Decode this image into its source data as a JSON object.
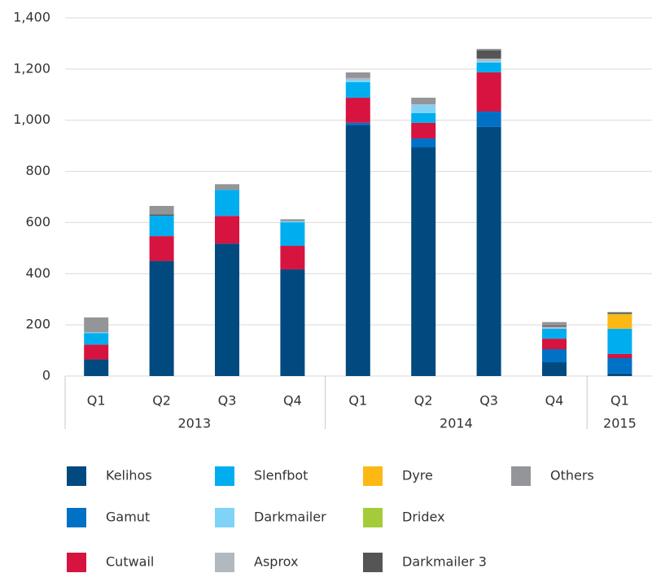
{
  "chart_data": {
    "type": "stacked_bar",
    "groups": [
      {
        "name": "2013",
        "categories": [
          "Q1",
          "Q2",
          "Q3",
          "Q4"
        ]
      },
      {
        "name": "2014",
        "categories": [
          "Q1",
          "Q2",
          "Q3",
          "Q4"
        ]
      },
      {
        "name": "2015",
        "categories": [
          "Q1"
        ]
      }
    ],
    "series": [
      {
        "name": "Kelihos",
        "color": "#004a80",
        "values": [
          65,
          450,
          518,
          417,
          980,
          894,
          974,
          54,
          10
        ]
      },
      {
        "name": "Gamut",
        "color": "#0071c5",
        "values": [
          0,
          0,
          0,
          0,
          10,
          35,
          60,
          51,
          60
        ]
      },
      {
        "name": "Cutwail",
        "color": "#d7133f",
        "values": [
          58,
          97,
          108,
          92,
          98,
          61,
          153,
          41,
          16
        ]
      },
      {
        "name": "Slenfbot",
        "color": "#00aeef",
        "values": [
          45,
          80,
          102,
          92,
          61,
          38,
          38,
          39,
          99
        ]
      },
      {
        "name": "Darkmailer",
        "color": "#7fd3f7",
        "values": [
          3,
          0,
          0,
          4,
          9,
          32,
          6,
          0,
          0
        ]
      },
      {
        "name": "Asprox",
        "color": "#b2b8bf",
        "values": [
          0,
          0,
          0,
          0,
          7,
          2,
          10,
          8,
          0
        ]
      },
      {
        "name": "Dyre",
        "color": "#fdb813",
        "values": [
          0,
          0,
          0,
          0,
          0,
          0,
          0,
          0,
          55
        ]
      },
      {
        "name": "Dridex",
        "color": "#a4cc3a",
        "values": [
          0,
          0,
          0,
          0,
          0,
          0,
          0,
          0,
          3
        ]
      },
      {
        "name": "Darkmailer 3",
        "color": "#555555",
        "values": [
          0,
          5,
          0,
          0,
          0,
          0,
          32,
          5,
          5
        ]
      },
      {
        "name": "Others",
        "color": "#939598",
        "values": [
          58,
          33,
          22,
          8,
          22,
          26,
          6,
          13,
          2
        ]
      }
    ],
    "ylim": [
      0,
      1400
    ],
    "yticks": [
      0,
      200,
      400,
      600,
      800,
      {
        "value": 1000,
        "label": "1,000"
      },
      {
        "value": 1200,
        "label": "1,200"
      },
      {
        "value": 1400,
        "label": "1,400"
      }
    ],
    "grid": true
  }
}
